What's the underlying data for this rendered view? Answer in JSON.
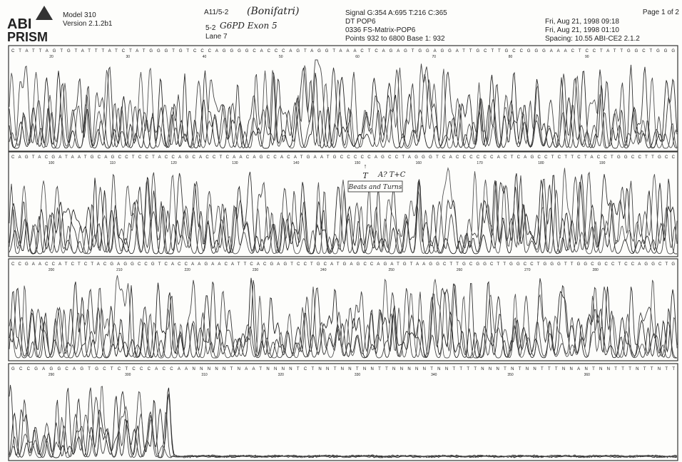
{
  "header": {
    "logo": {
      "line1": "ABI",
      "line2": "PRISM"
    },
    "model": "Model 310",
    "version": "Version 2.1.2b1",
    "sample": {
      "name": "A11/5-2",
      "note": "(Bonifatri)",
      "well": "5-2",
      "exon": "G6PD Exon 5",
      "lane": "Lane 7"
    },
    "run": {
      "signal": "Signal G:354 A:695 T:216 C:365",
      "polymer": "DT POP6",
      "matrix": "0336 FS-Matrix-POP6",
      "points": "Points 932 to 6800   Base 1: 932"
    },
    "dates": {
      "line1": "Fri, Aug 21, 1998  09:18",
      "line2": "Fri, Aug 21, 1998  01:10",
      "spacing": "Spacing: 10.55 ABI-CE2 2.1.2"
    },
    "page": "Page 1 of 2"
  },
  "panels": [
    {
      "sequence": "CTATTAGTGTATTTATCTATGGGTGTCCCAGGGGCACCCAGTAGGTAAACTCAGAGTGGAGGATTGCTTGCCGGGAAACTCCTATTGGCTGGG",
      "base_labels": [
        20,
        30,
        40,
        50,
        60,
        70,
        80,
        90
      ]
    },
    {
      "sequence": "CAGTACGATAATGCAGCCTCCTACCAGCACCTCAACAGCCACATGAATGCCCCCAGCCTAGGGTCACCCCCCACTCAGCCTCTTCTACCTGGCCTTGCC",
      "base_labels": [
        100,
        110,
        120,
        130,
        140,
        150,
        160,
        170,
        180,
        190
      ]
    },
    {
      "sequence": "CCGAACCATCTCTACGAGGCCGTCACCAAGAACATTCACGAGTCCTGCATGAGCCAGATGTAAGGCTTGCGGCTTGGCCTGGGTTGGCGCCTCCAGGCTG",
      "base_labels": [
        200,
        210,
        220,
        230,
        240,
        250,
        260,
        270,
        280
      ]
    },
    {
      "sequence": "GCCGAGGCAGTGCTCTCCCACCAANNNNNTNAATNNNNTCTNNTNNTNNTTNNNNNTNNTTTTNNNTNTNNTTTNNANTNNTTTNTTNTT",
      "base_labels": [
        290,
        300,
        310,
        320,
        330,
        340,
        350,
        360
      ]
    }
  ],
  "annotations": {
    "arrow": "T",
    "mark": "A? T+C",
    "box": "Beats and Turns"
  }
}
